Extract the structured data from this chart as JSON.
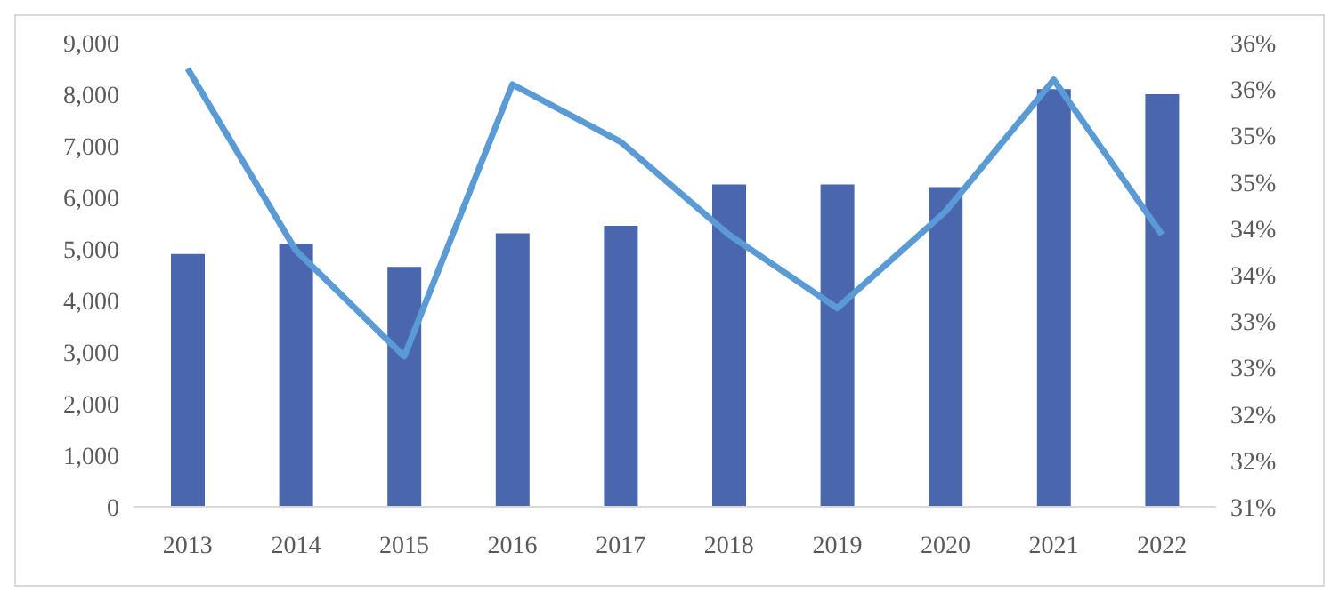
{
  "chart_data": {
    "type": "bar",
    "categories": [
      "2013",
      "2014",
      "2015",
      "2016",
      "2017",
      "2018",
      "2019",
      "2020",
      "2021",
      "2022"
    ],
    "series": [
      {
        "color": "#4a66ac",
        "values": [
          4900,
          5100,
          4650,
          5300,
          5450,
          6250,
          6250,
          6200,
          8100,
          8000
        ]
      },
      {
        "type": "line",
        "axis": "y2",
        "color": "#5b9bd5",
        "marker": "none",
        "values": [
          35.72,
          33.76,
          32.62,
          35.55,
          34.93,
          33.93,
          33.14,
          34.18,
          35.6,
          33.93
        ]
      }
    ],
    "ylim": [
      0,
      9000
    ],
    "yticks": [
      0,
      {
        "value": 1000,
        "label": "1,000"
      },
      {
        "value": 2000,
        "label": "2,000"
      },
      {
        "value": 3000,
        "label": "3,000"
      },
      {
        "value": 4000,
        "label": "4,000"
      },
      {
        "value": 5000,
        "label": "5,000"
      },
      {
        "value": 6000,
        "label": "6,000"
      },
      {
        "value": 7000,
        "label": "7,000"
      },
      {
        "value": 8000,
        "label": "8,000"
      },
      {
        "value": 9000,
        "label": "9,000"
      }
    ],
    "y2lim": [
      31,
      36
    ],
    "y2ticks": [
      {
        "value": 31,
        "label": "31%"
      },
      {
        "value": 31.5,
        "label": "32%"
      },
      {
        "value": 32,
        "label": "32%"
      },
      {
        "value": 32.5,
        "label": "33%"
      },
      {
        "value": 33,
        "label": "33%"
      },
      {
        "value": 33.5,
        "label": "34%"
      },
      {
        "value": 34,
        "label": "34%"
      },
      {
        "value": 34.5,
        "label": "35%"
      },
      {
        "value": 35,
        "label": "35%"
      },
      {
        "value": 35.5,
        "label": "36%"
      },
      {
        "value": 36,
        "label": "36%"
      }
    ],
    "grid": false,
    "legend": false
  }
}
